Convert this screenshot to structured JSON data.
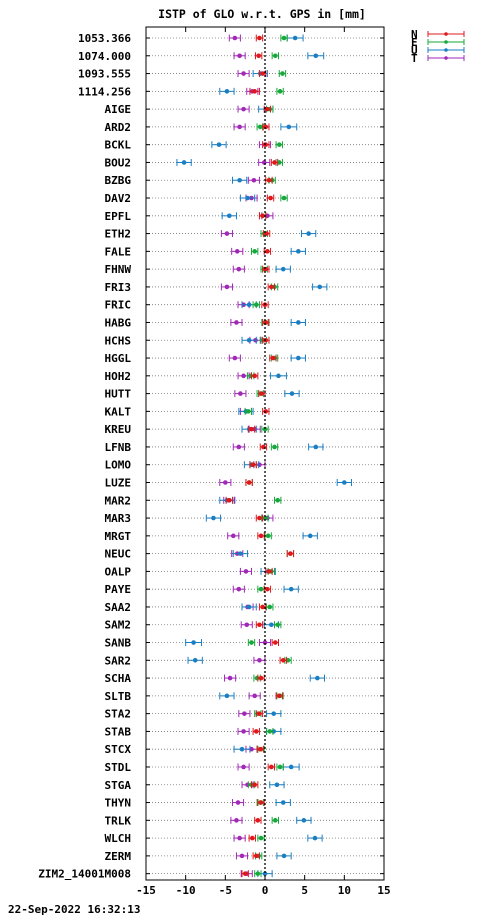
{
  "chart_data": {
    "type": "scatter",
    "title": "ISTP of GLO w.r.t. GPS in [mm]",
    "xlim": [
      -15,
      15
    ],
    "xticks": [
      -15,
      -10,
      -5,
      0,
      5,
      10,
      15
    ],
    "grid": "horizontal dotted",
    "legend_position": "top-right, outside plot",
    "legend": [
      {
        "name": "N",
        "color": "#e0181c"
      },
      {
        "name": "E",
        "color": "#16a83a"
      },
      {
        "name": "U",
        "color": "#1a7ec3"
      },
      {
        "name": "T",
        "color": "#a228b8"
      }
    ],
    "categories": [
      "1053.366",
      "1074.000",
      "1093.555",
      "1114.256",
      "AIGE",
      "ARD2",
      "BCKL",
      "BOU2",
      "BZBG",
      "DAV2",
      "EPFL",
      "ETH2",
      "FALE",
      "FHNW",
      "FRI3",
      "FRIC",
      "HABG",
      "HCHS",
      "HGGL",
      "HOH2",
      "HUTT",
      "KALT",
      "KREU",
      "LFNB",
      "LOMO",
      "LUZE",
      "MAR2",
      "MAR3",
      "MRGT",
      "NEUC",
      "OALP",
      "PAYE",
      "SAA2",
      "SAM2",
      "SANB",
      "SAR2",
      "SCHA",
      "SLTB",
      "STA2",
      "STAB",
      "STCX",
      "STDL",
      "STGA",
      "THYN",
      "TRLK",
      "WLCH",
      "ZERM",
      "ZIM2_14001M008"
    ],
    "series": [
      {
        "name": "N",
        "values": [
          -0.7,
          -0.8,
          -0.3,
          -1.3,
          0.3,
          0.1,
          0.1,
          1.2,
          0.5,
          0.7,
          -0.3,
          0.2,
          0.3,
          0.1,
          0.8,
          0.0,
          0.1,
          0.1,
          1.0,
          -1.3,
          -0.4,
          0.1,
          -1.7,
          -0.2,
          -1.5,
          -2.0,
          -4.5,
          -0.7,
          -0.5,
          3.2,
          0.5,
          0.3,
          -0.3,
          -0.7,
          1.3,
          2.3,
          -0.5,
          1.8,
          -0.7,
          -1.1,
          -0.6,
          0.8,
          -1.3,
          -0.5,
          -0.9,
          -1.6,
          -1.1,
          -2.5
        ]
      },
      {
        "name": "E",
        "values": [
          2.4,
          1.3,
          2.2,
          1.9,
          0.6,
          -0.6,
          1.8,
          1.8,
          0.9,
          2.4,
          -0.3,
          -0.1,
          -1.3,
          -0.1,
          1.2,
          -1.1,
          0.0,
          -0.2,
          1.2,
          -1.8,
          -0.6,
          -2.1,
          0.0,
          1.2,
          -1.5,
          -2.0,
          1.6,
          0.0,
          0.4,
          3.2,
          0.8,
          -0.5,
          0.6,
          1.6,
          -1.7,
          2.9,
          -1.0,
          1.9,
          -0.9,
          0.6,
          -0.5,
          1.9,
          -1.7,
          -0.6,
          1.3,
          -0.5,
          -0.8,
          -0.9
        ]
      },
      {
        "name": "U",
        "values": [
          3.8,
          6.4,
          -0.6,
          -4.8,
          0.1,
          3.0,
          -5.8,
          -10.2,
          -3.2,
          -2.2,
          -4.5,
          5.5,
          4.2,
          2.3,
          6.9,
          -2.0,
          4.2,
          -2.0,
          4.2,
          1.7,
          3.4,
          -2.4,
          -2.0,
          6.4,
          -1.7,
          10.0,
          -4.8,
          -6.5,
          5.7,
          -3.1,
          0.4,
          3.3,
          -2.0,
          0.8,
          -9.0,
          -8.8,
          6.6,
          -4.8,
          1.1,
          1.1,
          -2.9,
          3.3,
          1.5,
          2.3,
          4.9,
          6.3,
          2.4,
          0.0
        ]
      },
      {
        "name": "T",
        "values": [
          -3.8,
          -3.2,
          -2.7,
          -1.6,
          -2.7,
          -3.2,
          0.0,
          -0.1,
          -1.4,
          -1.7,
          0.3,
          -4.8,
          -3.5,
          -3.3,
          -4.8,
          -2.7,
          -3.6,
          -1.2,
          -3.8,
          -2.7,
          -3.1,
          -2.4,
          -1.3,
          -3.3,
          -0.7,
          -5.0,
          -4.5,
          0.3,
          -4.0,
          -3.5,
          -2.4,
          -3.3,
          -2.2,
          -2.3,
          0.0,
          -0.7,
          -4.4,
          -1.3,
          -2.6,
          -2.7,
          -1.7,
          -2.7,
          -2.2,
          -3.4,
          -3.6,
          -3.2,
          -2.9,
          -2.3
        ]
      }
    ],
    "errors": {
      "N": [
        0.4,
        0.4,
        0.4,
        0.6,
        0.4,
        0.4,
        0.4,
        0.4,
        0.4,
        0.4,
        0.4,
        0.4,
        0.4,
        0.4,
        0.4,
        0.4,
        0.4,
        0.4,
        0.4,
        0.4,
        0.4,
        0.4,
        0.4,
        0.4,
        0.4,
        0.4,
        0.4,
        0.4,
        0.4,
        0.4,
        0.4,
        0.4,
        0.4,
        0.4,
        0.4,
        0.4,
        0.4,
        0.4,
        0.4,
        0.4,
        0.4,
        0.4,
        0.4,
        0.4,
        0.4,
        0.4,
        0.4,
        0.4
      ],
      "E": [
        0.4,
        0.4,
        0.4,
        0.4,
        0.4,
        0.4,
        0.4,
        0.4,
        0.4,
        0.4,
        0.4,
        0.4,
        0.4,
        0.4,
        0.4,
        0.4,
        0.4,
        0.4,
        0.4,
        0.4,
        0.4,
        0.4,
        0.4,
        0.4,
        0.4,
        0.4,
        0.4,
        0.4,
        0.4,
        0.4,
        0.4,
        0.4,
        0.4,
        0.4,
        0.4,
        0.4,
        0.4,
        0.4,
        0.4,
        0.4,
        0.4,
        0.4,
        0.4,
        0.4,
        0.4,
        0.4,
        0.4,
        0.4
      ],
      "U": [
        1.0,
        1.0,
        0.9,
        0.9,
        0.9,
        1.0,
        0.9,
        0.9,
        0.9,
        0.9,
        0.9,
        0.9,
        0.9,
        0.9,
        0.9,
        0.9,
        0.9,
        0.9,
        0.9,
        1.0,
        0.9,
        0.9,
        0.9,
        0.9,
        0.9,
        0.9,
        0.9,
        0.9,
        0.9,
        0.9,
        0.9,
        0.9,
        0.9,
        0.9,
        1.0,
        0.9,
        0.9,
        0.9,
        0.9,
        0.9,
        1.0,
        1.0,
        0.9,
        0.9,
        0.9,
        0.9,
        0.9,
        0.9
      ],
      "T": [
        0.7,
        0.7,
        0.7,
        0.7,
        0.7,
        0.7,
        0.7,
        0.7,
        0.7,
        0.7,
        0.7,
        0.7,
        0.7,
        0.7,
        0.7,
        0.7,
        0.7,
        0.7,
        0.7,
        0.7,
        0.7,
        0.7,
        0.7,
        0.7,
        0.7,
        0.7,
        0.7,
        0.7,
        0.7,
        0.7,
        0.7,
        0.7,
        0.7,
        0.7,
        0.7,
        0.7,
        0.7,
        0.7,
        0.7,
        0.7,
        0.7,
        0.7,
        0.7,
        0.7,
        0.7,
        0.7,
        0.7,
        0.7
      ]
    }
  },
  "footer": {
    "timestamp": "22-Sep-2022 16:32:13"
  }
}
